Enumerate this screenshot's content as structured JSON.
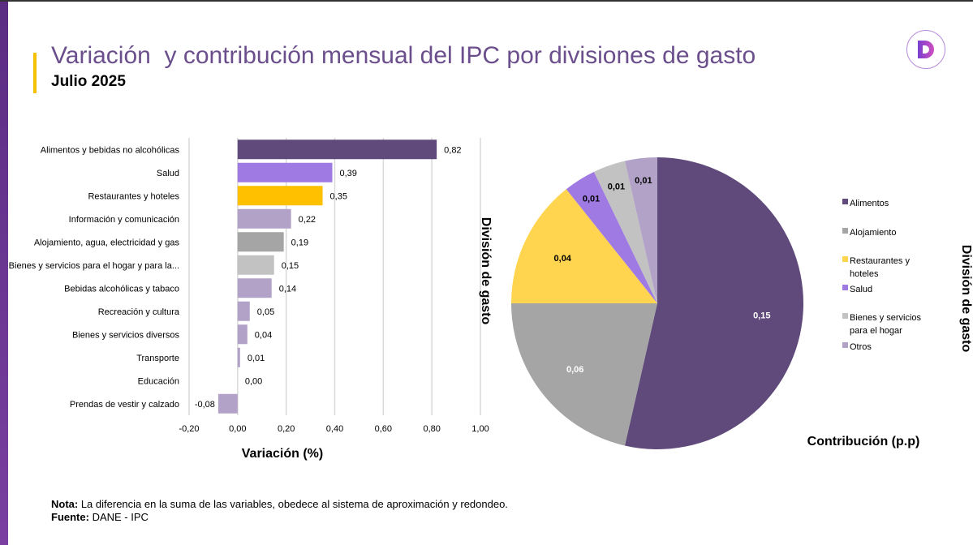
{
  "header": {
    "title": "Variación  y contribución mensual del IPC por divisiones de gasto",
    "subtitle": "Julio 2025",
    "logo_text": "D"
  },
  "footer": {
    "note_label": "Nota:",
    "note_text": " La diferencia en la suma de las variables, obedece al sistema de aproximación y redondeo.",
    "source_label": "Fuente:",
    "source_text": " DANE - IPC"
  },
  "chart_data": [
    {
      "type": "bar",
      "orientation": "horizontal",
      "categories": [
        "Alimentos y bebidas no alcohólicas",
        "Salud",
        "Restaurantes y hoteles",
        "Información y comunicación",
        "Alojamiento, agua, electricidad y gas",
        "Bienes y servicios para el hogar y para la...",
        "Bebidas alcohólicas y tabaco",
        "Recreación y cultura",
        "Bienes y servicios diversos",
        "Transporte",
        "Educación",
        "Prendas de vestir y calzado"
      ],
      "values": [
        0.82,
        0.39,
        0.35,
        0.22,
        0.19,
        0.15,
        0.14,
        0.05,
        0.04,
        0.01,
        0.0,
        -0.08
      ],
      "labels": [
        "0,82",
        "0,39",
        "0,35",
        "0,22",
        "0,19",
        "0,15",
        "0,14",
        "0,05",
        "0,04",
        "0,01",
        "0,00",
        "-0,08"
      ],
      "colors": [
        "#5f4a7b",
        "#9f7ae3",
        "#ffc000",
        "#b3a2c8",
        "#a5a5a5",
        "#c2c2c2",
        "#b3a2c8",
        "#b3a2c8",
        "#b3a2c8",
        "#b3a2c8",
        "#b3a2c8",
        "#b3a2c8"
      ],
      "xlabel": "Variación (%)",
      "ylabel": "División de gasto",
      "xlim": [
        -0.2,
        1.0
      ],
      "xticks": [
        -0.2,
        0,
        0.2,
        0.4,
        0.6,
        0.8,
        1.0
      ],
      "xtick_labels": [
        "-0,20",
        "0,00",
        "0,20",
        "0,40",
        "0,60",
        "0,80",
        "1,00"
      ],
      "grid": "vertical"
    },
    {
      "type": "pie",
      "categories": [
        "Alimentos",
        "Alojamiento",
        "Restaurantes y hoteles",
        "Salud",
        "Bienes y servicios para el hogar",
        "Otros"
      ],
      "legend_lines": [
        [
          "Alimentos"
        ],
        [
          "Alojamiento"
        ],
        [
          "Restaurantes y",
          "hoteles"
        ],
        [
          "Salud"
        ],
        [
          "Bienes y servicios",
          "para el hogar"
        ],
        [
          "Otros"
        ]
      ],
      "values": [
        0.15,
        0.06,
        0.04,
        0.01,
        0.01,
        0.01
      ],
      "labels": [
        "0,15",
        "0,06",
        "0,04",
        "0,01",
        "0,01",
        "0,01"
      ],
      "label_colors": [
        "#ffffff",
        "#ffffff",
        "#000000",
        "#000000",
        "#000000",
        "#000000"
      ],
      "colors": [
        "#5f4a7b",
        "#a5a5a5",
        "#ffd54f",
        "#9f7ae3",
        "#c2c2c2",
        "#b3a2c8"
      ],
      "xlabel": "Contribución (p.p)",
      "ylabel": "División de gasto",
      "legend": "right"
    }
  ]
}
